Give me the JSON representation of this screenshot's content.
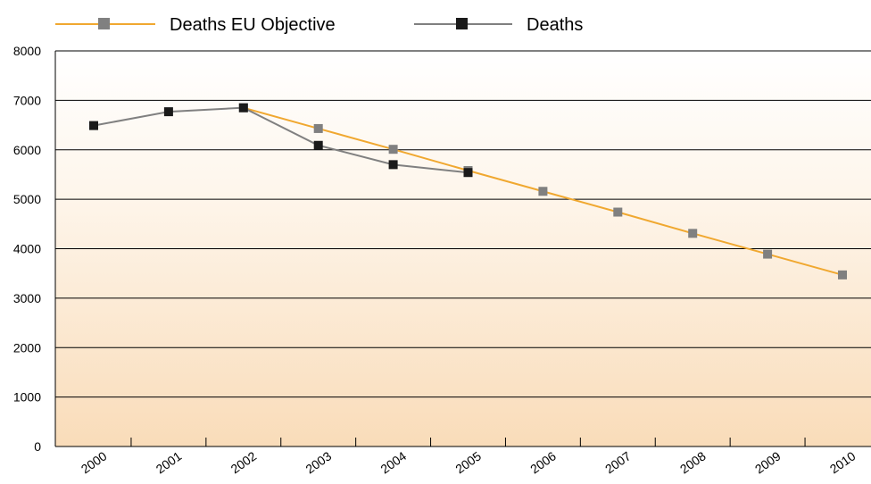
{
  "chart_data": {
    "type": "line",
    "title": "",
    "xlabel": "",
    "ylabel": "",
    "categories": [
      "2000",
      "2001",
      "2002",
      "2003",
      "2004",
      "2005",
      "2006",
      "2007",
      "2008",
      "2009",
      "2010"
    ],
    "ylim": [
      0,
      8000
    ],
    "yticks": [
      0,
      1000,
      2000,
      3000,
      4000,
      5000,
      6000,
      7000,
      8000
    ],
    "grid": "horizontal",
    "legend_position": "top",
    "background": "vertical gradient from white to light peach",
    "series": [
      {
        "name": "Deaths EU Objective",
        "line_color": "#f0a830",
        "marker_color": "#808080",
        "values": [
          null,
          null,
          6850,
          6430,
          6010,
          5580,
          5160,
          4740,
          4310,
          3890,
          3470
        ]
      },
      {
        "name": "Deaths",
        "line_color": "#808080",
        "marker_color": "#1a1a1a",
        "values": [
          6490,
          6770,
          6850,
          6090,
          5700,
          5540,
          null,
          null,
          null,
          null,
          null
        ]
      }
    ]
  }
}
